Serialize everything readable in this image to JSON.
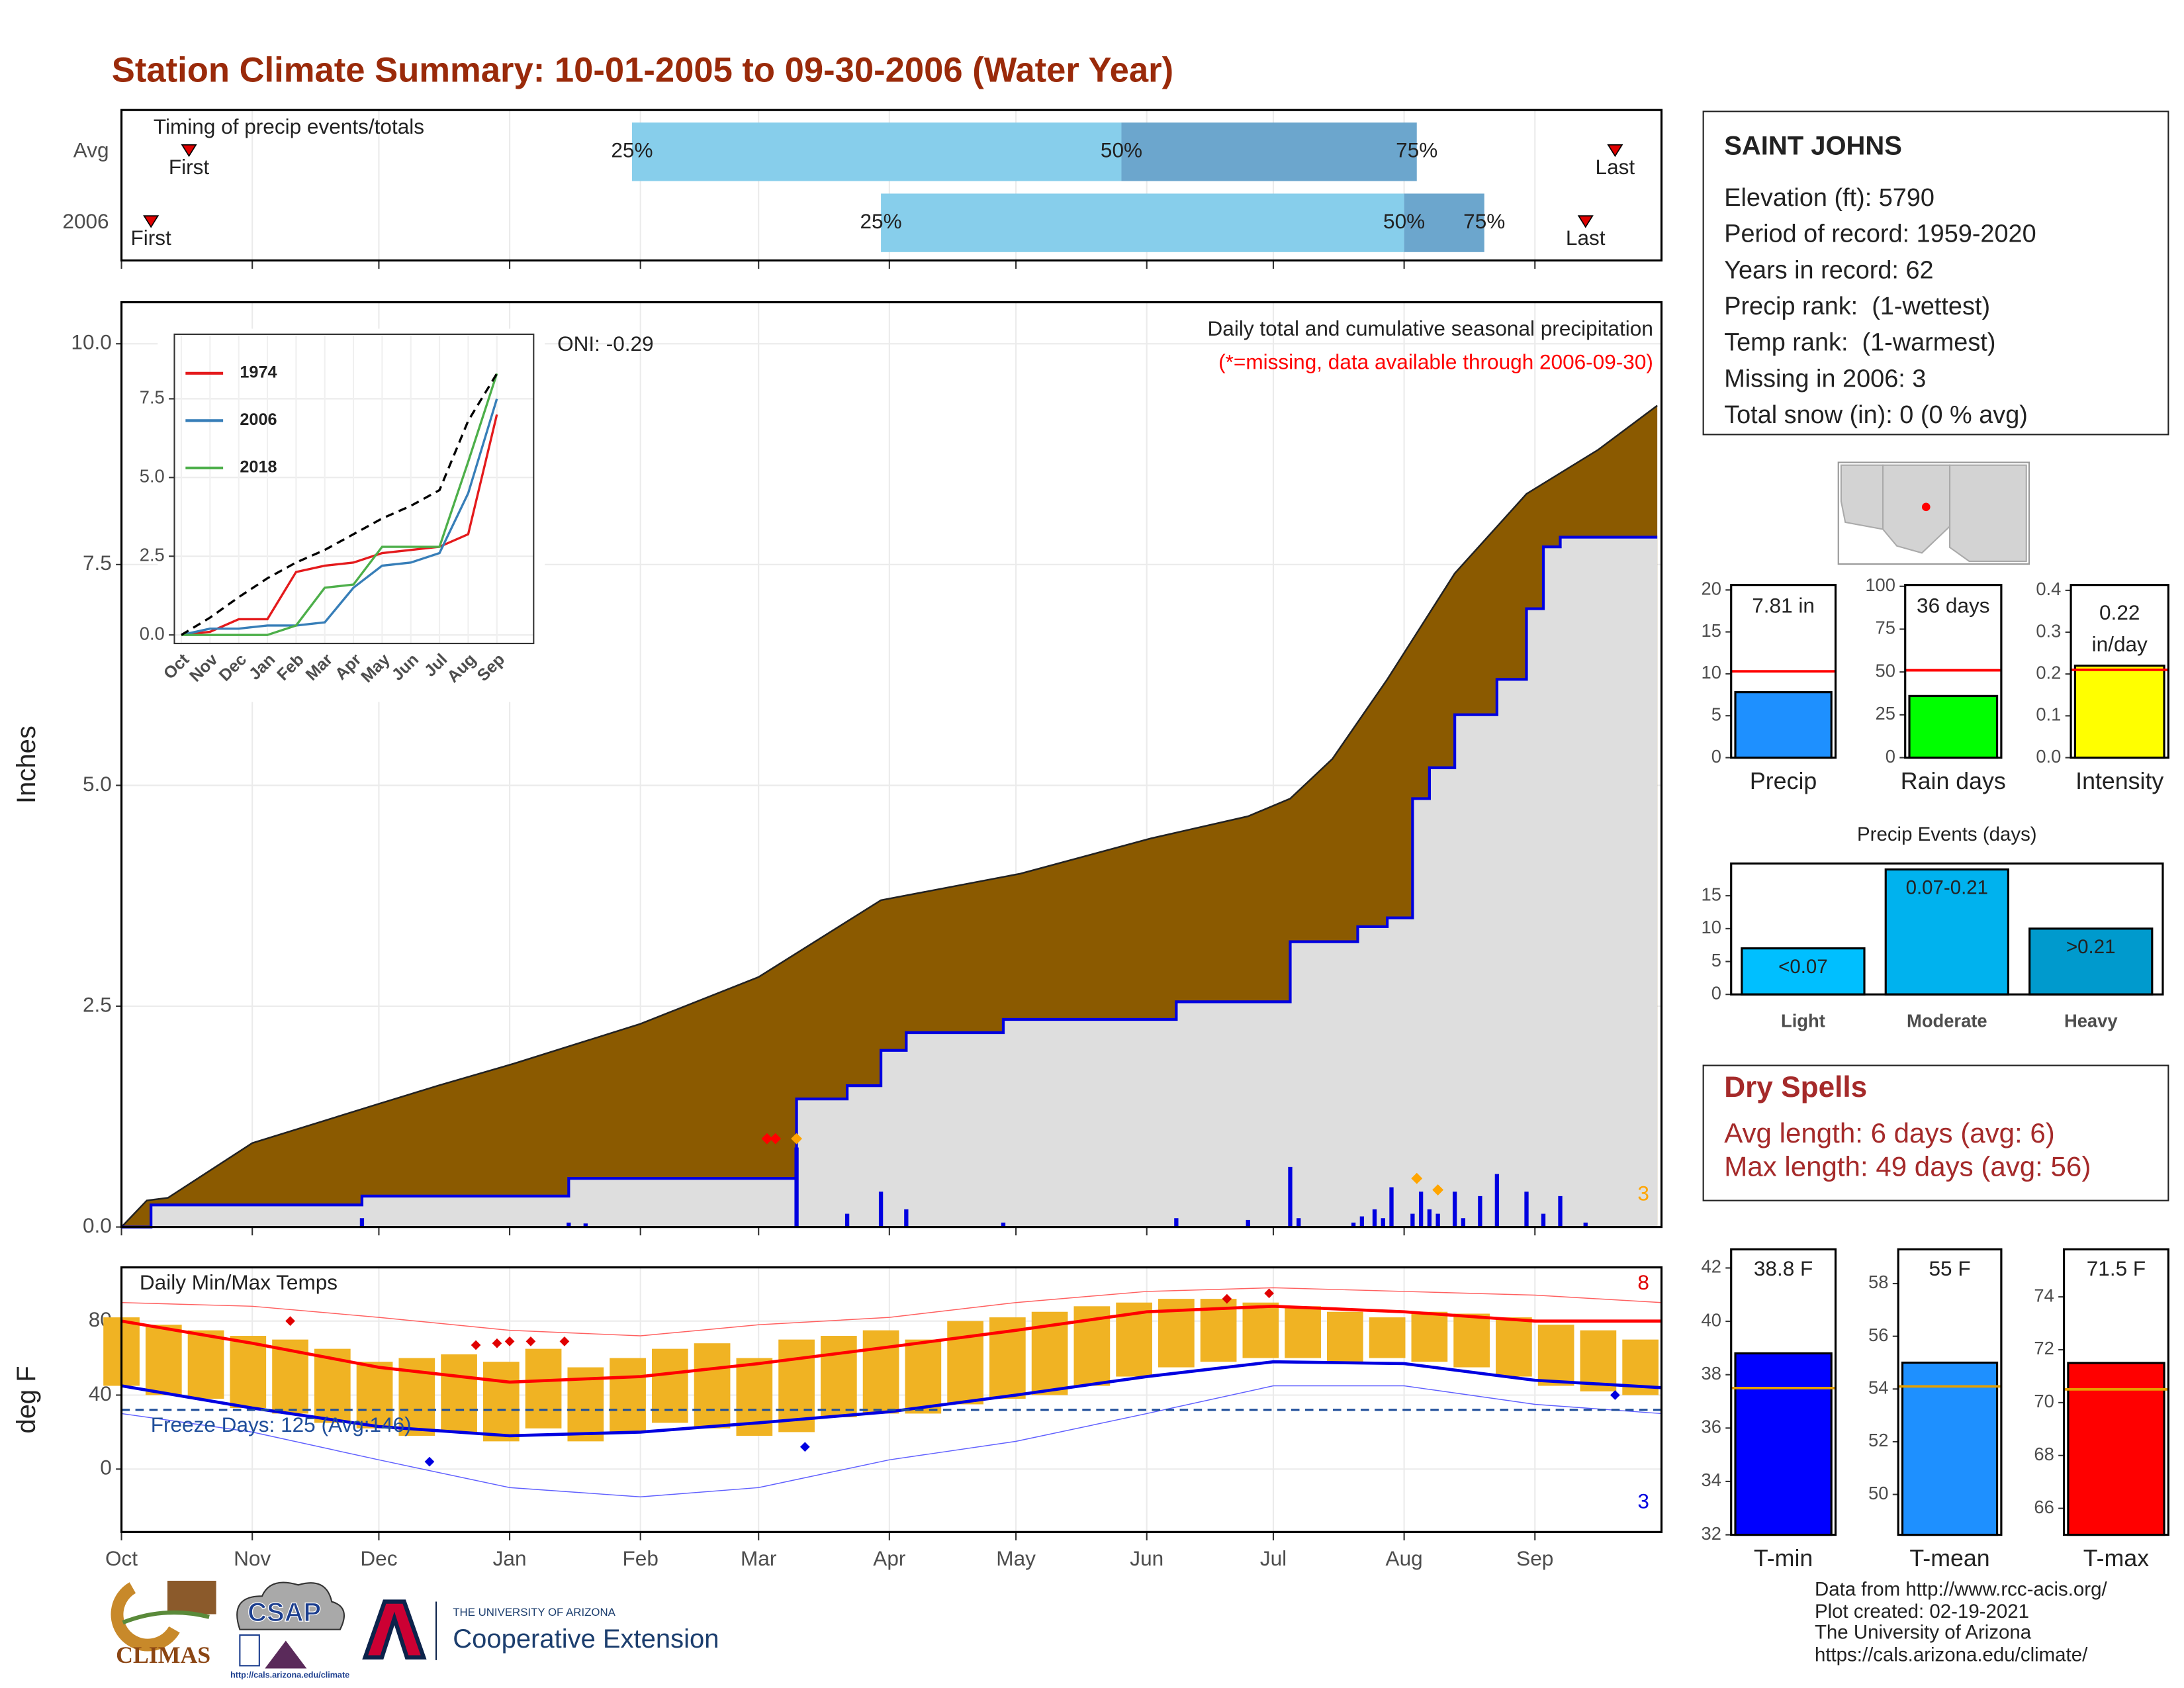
{
  "title": "Station Climate Summary: 10-01-2005 to 09-30-2006 (Water Year)",
  "chart_data": [
    {
      "type": "timing",
      "title": "Timing of precip events/totals",
      "categories": [
        "Avg",
        "2006"
      ],
      "marker_labels": [
        "First",
        "25%",
        "50%",
        "75%",
        "Last"
      ],
      "values": [
        [
          16,
          121,
          237,
          307,
          354
        ],
        [
          7,
          180,
          304,
          323,
          347
        ]
      ],
      "colors": [
        "#87ceeb",
        "#6ca6cd"
      ],
      "marker_color": "#e00000",
      "xlim": [
        0,
        365
      ]
    },
    {
      "type": "area",
      "title": "Daily total and cumulative seasonal precipitation",
      "subtitle": "(*=missing, data available through 2006-09-30)",
      "annotation": "ONI: -0.29",
      "missing_count": 3,
      "y_label": "Inches",
      "xlim": [
        0,
        365
      ],
      "ylim": [
        0,
        10.47
      ],
      "yticks": [
        {
          "value": 0,
          "label": "0.0"
        },
        {
          "value": 2.5,
          "label": "2.5"
        },
        {
          "value": 5,
          "label": "5.0"
        },
        {
          "value": 7.5,
          "label": "7.5"
        },
        {
          "value": 10,
          "label": "10.0"
        }
      ],
      "grid": true,
      "series": [
        {
          "x": [
            0,
            6,
            11,
            31,
            60,
            75,
            93,
            123,
            151,
            180,
            213,
            244,
            267,
            277,
            287,
            300,
            316,
            333,
            350,
            364
          ],
          "values": [
            0,
            0.3,
            0.33,
            0.95,
            1.38,
            1.6,
            1.85,
            2.3,
            2.83,
            3.7,
            4.0,
            4.4,
            4.65,
            4.85,
            5.3,
            6.2,
            7.4,
            8.3,
            8.8,
            9.3
          ],
          "color": "#8b5a00"
        },
        {
          "x": [
            0,
            7,
            57,
            106,
            160,
            172,
            180,
            186,
            209,
            250,
            277,
            293,
            300,
            306,
            310,
            316,
            326,
            333,
            337,
            341,
            364
          ],
          "values": [
            0,
            0.25,
            0.35,
            0.55,
            1.45,
            1.6,
            2.0,
            2.2,
            2.35,
            2.55,
            3.23,
            3.4,
            3.5,
            4.85,
            5.2,
            5.8,
            6.2,
            7.0,
            7.7,
            7.81,
            7.81
          ],
          "color": "#dedede",
          "line_color": "#0000e0",
          "step": true
        }
      ],
      "daily": {
        "x": [
          57,
          106,
          110,
          160,
          172,
          180,
          186,
          209,
          250,
          267,
          277,
          279,
          292,
          294,
          297,
          299,
          301,
          306,
          308,
          310,
          312,
          316,
          318,
          322,
          326,
          333,
          337,
          341,
          347
        ],
        "values": [
          0.1,
          0.05,
          0.04,
          0.9,
          0.15,
          0.4,
          0.2,
          0.05,
          0.1,
          0.08,
          0.68,
          0.1,
          0.05,
          0.12,
          0.2,
          0.1,
          0.45,
          0.15,
          0.4,
          0.2,
          0.15,
          0.4,
          0.1,
          0.35,
          0.6,
          0.4,
          0.15,
          0.35,
          0.05
        ],
        "color": "#0000e0"
      },
      "flags": {
        "x": [
          153,
          155,
          160,
          307,
          312
        ],
        "values": [
          1.0,
          1.0,
          1.0,
          0.55,
          0.42
        ],
        "colors": [
          "#ff0000",
          "#ff0000",
          "#ffa500",
          "#ffa500",
          "#ffa500"
        ]
      }
    },
    {
      "type": "line",
      "categories": [
        "Oct",
        "Nov",
        "Dec",
        "Jan",
        "Feb",
        "Mar",
        "Apr",
        "May",
        "Jun",
        "Jul",
        "Aug",
        "Sep"
      ],
      "ylim": [
        -0.27,
        9.55
      ],
      "yticks": [
        {
          "value": 0,
          "label": "0.0"
        },
        {
          "value": 2.5,
          "label": "2.5"
        },
        {
          "value": 5,
          "label": "5.0"
        },
        {
          "value": 7.5,
          "label": "7.5"
        }
      ],
      "series": [
        {
          "name": "1974",
          "color": "#e41a1c",
          "values": [
            0,
            0.1,
            0.5,
            0.5,
            2.0,
            2.2,
            2.3,
            2.6,
            2.7,
            2.8,
            3.2,
            7.0
          ]
        },
        {
          "name": "2006",
          "color": "#377eb8",
          "values": [
            0,
            0.2,
            0.2,
            0.3,
            0.3,
            0.4,
            1.5,
            2.2,
            2.3,
            2.6,
            4.5,
            7.5
          ]
        },
        {
          "name": "2018",
          "color": "#4daf4a",
          "values": [
            0,
            0,
            0,
            0,
            0.3,
            1.5,
            1.6,
            2.8,
            2.8,
            2.8,
            5.5,
            8.3
          ]
        },
        {
          "color": "#000000",
          "dash": true,
          "values": [
            0,
            0.55,
            1.2,
            1.8,
            2.3,
            2.7,
            3.2,
            3.7,
            4.1,
            4.6,
            6.8,
            8.3
          ]
        }
      ]
    },
    {
      "type": "range_bar",
      "title": "Daily Min/Max Temps",
      "annotation": "Freeze Days: 125 (Avg:146)",
      "y_label": "deg F",
      "xlim": [
        0,
        365
      ],
      "xticks": [
        {
          "value": 0,
          "label": "Oct"
        },
        {
          "value": 31,
          "label": "Nov"
        },
        {
          "value": 61,
          "label": "Dec"
        },
        {
          "value": 92,
          "label": "Jan"
        },
        {
          "value": 123,
          "label": "Feb"
        },
        {
          "value": 151,
          "label": "Mar"
        },
        {
          "value": 182,
          "label": "Apr"
        },
        {
          "value": 212,
          "label": "May"
        },
        {
          "value": 243,
          "label": "Jun"
        },
        {
          "value": 273,
          "label": "Jul"
        },
        {
          "value": 304,
          "label": "Aug"
        },
        {
          "value": 335,
          "label": "Sep"
        }
      ],
      "ylim": [
        -34,
        109
      ],
      "yticks": [
        0,
        40,
        80
      ],
      "grid": true,
      "freeze": 32,
      "color": "#f0b323",
      "x": [
        0,
        10,
        20,
        30,
        40,
        50,
        60,
        70,
        80,
        90,
        100,
        110,
        120,
        130,
        140,
        150,
        160,
        170,
        180,
        190,
        200,
        210,
        220,
        230,
        240,
        250,
        260,
        270,
        280,
        290,
        300,
        310,
        320,
        330,
        340,
        350,
        360
      ],
      "lows": [
        45,
        40,
        38,
        33,
        30,
        25,
        22,
        18,
        20,
        15,
        22,
        15,
        20,
        25,
        22,
        18,
        20,
        28,
        30,
        30,
        35,
        38,
        40,
        45,
        50,
        55,
        58,
        60,
        60,
        58,
        60,
        58,
        55,
        50,
        45,
        42,
        40
      ],
      "highs": [
        82,
        78,
        75,
        72,
        70,
        65,
        58,
        60,
        62,
        58,
        65,
        55,
        60,
        65,
        68,
        60,
        70,
        72,
        75,
        70,
        80,
        82,
        85,
        88,
        90,
        92,
        92,
        90,
        88,
        85,
        82,
        85,
        84,
        82,
        78,
        75,
        70
      ],
      "avg_x": [
        0,
        31,
        61,
        92,
        123,
        151,
        182,
        212,
        243,
        273,
        304,
        335,
        365
      ],
      "avg_max": [
        80,
        68,
        55,
        47,
        50,
        57,
        66,
        75,
        85,
        88,
        85,
        80,
        80
      ],
      "avg_min": [
        45,
        33,
        23,
        18,
        20,
        25,
        31,
        40,
        50,
        58,
        57,
        48,
        44
      ],
      "record_high": [
        90,
        88,
        82,
        75,
        72,
        78,
        82,
        90,
        96,
        98,
        96,
        94,
        90
      ],
      "record_low": [
        30,
        20,
        5,
        -10,
        -15,
        -10,
        5,
        15,
        30,
        45,
        45,
        35,
        30
      ],
      "record_high_count": 8,
      "record_low_count": 3,
      "record_high_points": {
        "x": [
          40,
          84,
          89,
          92,
          97,
          105,
          262,
          272
        ],
        "values": [
          80,
          67,
          68,
          69,
          69,
          69,
          92,
          95
        ]
      },
      "record_low_points": {
        "x": [
          73,
          162,
          354
        ],
        "values": [
          4,
          12,
          40
        ]
      }
    },
    {
      "type": "bar",
      "categories": [
        "Precip"
      ],
      "values": [
        7.81
      ],
      "value_labels": [
        "7.81 in"
      ],
      "average": 10.3,
      "average_color": "#ff0000",
      "color": "#1e90ff",
      "ylim": [
        0,
        20.6
      ],
      "yticks": [
        0,
        5,
        10,
        15,
        20
      ]
    },
    {
      "type": "bar",
      "categories": [
        "Rain days"
      ],
      "values": [
        36
      ],
      "value_labels": [
        "36 days"
      ],
      "average": 51,
      "average_color": "#ff0000",
      "color": "#00ff00",
      "ylim": [
        0,
        100.8
      ],
      "yticks": [
        0,
        25,
        50,
        75,
        100
      ]
    },
    {
      "type": "bar",
      "categories": [
        "Intensity"
      ],
      "values": [
        0.22
      ],
      "value_labels": [
        "0.22 in/day"
      ],
      "average": 0.21,
      "average_color": "#ff0000",
      "color": "#ffff00",
      "ylim": [
        0,
        0.413
      ],
      "yticks": [
        {
          "value": 0,
          "label": "0.0"
        },
        {
          "value": 0.1,
          "label": "0.1"
        },
        {
          "value": 0.2,
          "label": "0.2"
        },
        {
          "value": 0.3,
          "label": "0.3"
        },
        {
          "value": 0.4,
          "label": "0.4"
        }
      ]
    },
    {
      "type": "bar",
      "title": "Precip Events (days)",
      "categories": [
        "Light",
        "Moderate",
        "Heavy"
      ],
      "values": [
        7,
        19,
        10
      ],
      "thresholds": [
        "<0.07",
        "0.07-0.21",
        ">0.21"
      ],
      "colors": [
        "#00bfff",
        "#00b2ee",
        "#009acd"
      ],
      "ylim": [
        0,
        19.9
      ],
      "yticks": [
        0,
        5,
        10,
        15
      ]
    },
    {
      "type": "bar",
      "categories": [
        "T-min"
      ],
      "values": [
        38.8
      ],
      "value_labels": [
        "38.8 F"
      ],
      "average": 37.5,
      "average_color": "#e69f00",
      "color": "#0000ff",
      "ylim": [
        32,
        42.7
      ],
      "yticks": [
        32,
        34,
        36,
        38,
        40,
        42
      ]
    },
    {
      "type": "bar",
      "categories": [
        "T-mean"
      ],
      "values": [
        55
      ],
      "value_labels": [
        "55 F"
      ],
      "average": 54.1,
      "average_color": "#e69f00",
      "color": "#1e90ff",
      "ylim": [
        48.47,
        59.3
      ],
      "yticks": [
        50,
        52,
        54,
        56,
        58
      ]
    },
    {
      "type": "bar",
      "categories": [
        "T-max"
      ],
      "values": [
        71.5
      ],
      "value_labels": [
        "71.5 F"
      ],
      "average": 70.5,
      "average_color": "#e69f00",
      "color": "#ff0000",
      "ylim": [
        65,
        75.8
      ],
      "yticks": [
        66,
        68,
        70,
        72,
        74
      ]
    }
  ],
  "station": {
    "name": "SAINT JOHNS",
    "lines": [
      "Elevation (ft): 5790",
      "Period of record: 1959-2020",
      "Years in record: 62",
      "Precip rank:  (1-wettest)",
      "Temp rank:  (1-warmest)",
      "Missing in 2006: 3",
      "Total snow (in): 0 (0 % avg)"
    ]
  },
  "dry_spells": {
    "title": "Dry Spells",
    "lines": [
      "Avg length: 6 days (avg: 6)",
      "Max length: 49 days (avg: 56)"
    ]
  },
  "footer": [
    "Data from http://www.rcc-acis.org/",
    "Plot created: 02-19-2021",
    "The University of Arizona",
    "https://cals.arizona.edu/climate/"
  ],
  "logos": {
    "climas": "CLIMAS",
    "csap": "CSAP",
    "csap_url": "http://cals.arizona.edu/climate",
    "ua_small": "THE UNIVERSITY OF ARIZONA",
    "ua": "Cooperative Extension"
  }
}
